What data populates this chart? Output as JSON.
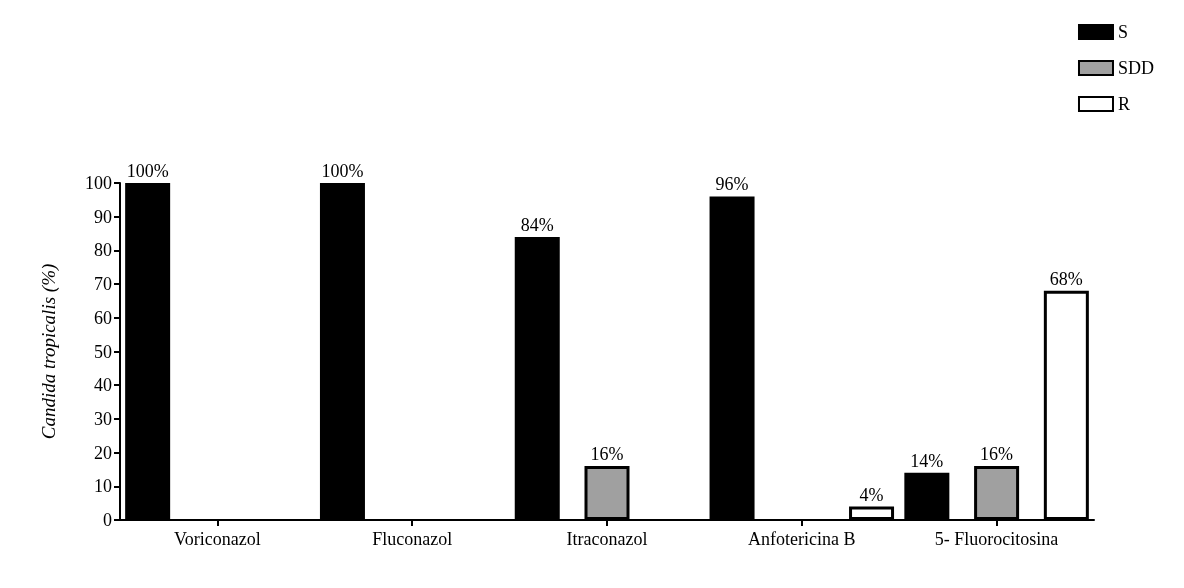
{
  "chart_data": {
    "type": "bar",
    "ylabel": "Candida tropicalis (%)",
    "categories": [
      "Voriconazol",
      "Fluconazol",
      "Itraconazol",
      "Anfotericina B",
      "5- Fluorocitosina"
    ],
    "series": [
      {
        "name": "S",
        "color": "#000000",
        "values": [
          100,
          100,
          84,
          96,
          14
        ],
        "value_labels": [
          "100%",
          "100%",
          "84%",
          "96%",
          "14%"
        ]
      },
      {
        "name": "SDD",
        "color": "#a0a0a0",
        "values": [
          0,
          0,
          16,
          0,
          16
        ],
        "value_labels": [
          null,
          null,
          "16%",
          null,
          "16%"
        ]
      },
      {
        "name": "R",
        "color": "#ffffff",
        "values": [
          0,
          0,
          0,
          4,
          68
        ],
        "value_labels": [
          null,
          null,
          null,
          "4%",
          "68%"
        ]
      }
    ],
    "ylim": [
      0,
      100
    ],
    "yticks": [
      0,
      10,
      20,
      30,
      40,
      50,
      60,
      70,
      80,
      90,
      100
    ],
    "grid": false,
    "legend": "top right"
  }
}
